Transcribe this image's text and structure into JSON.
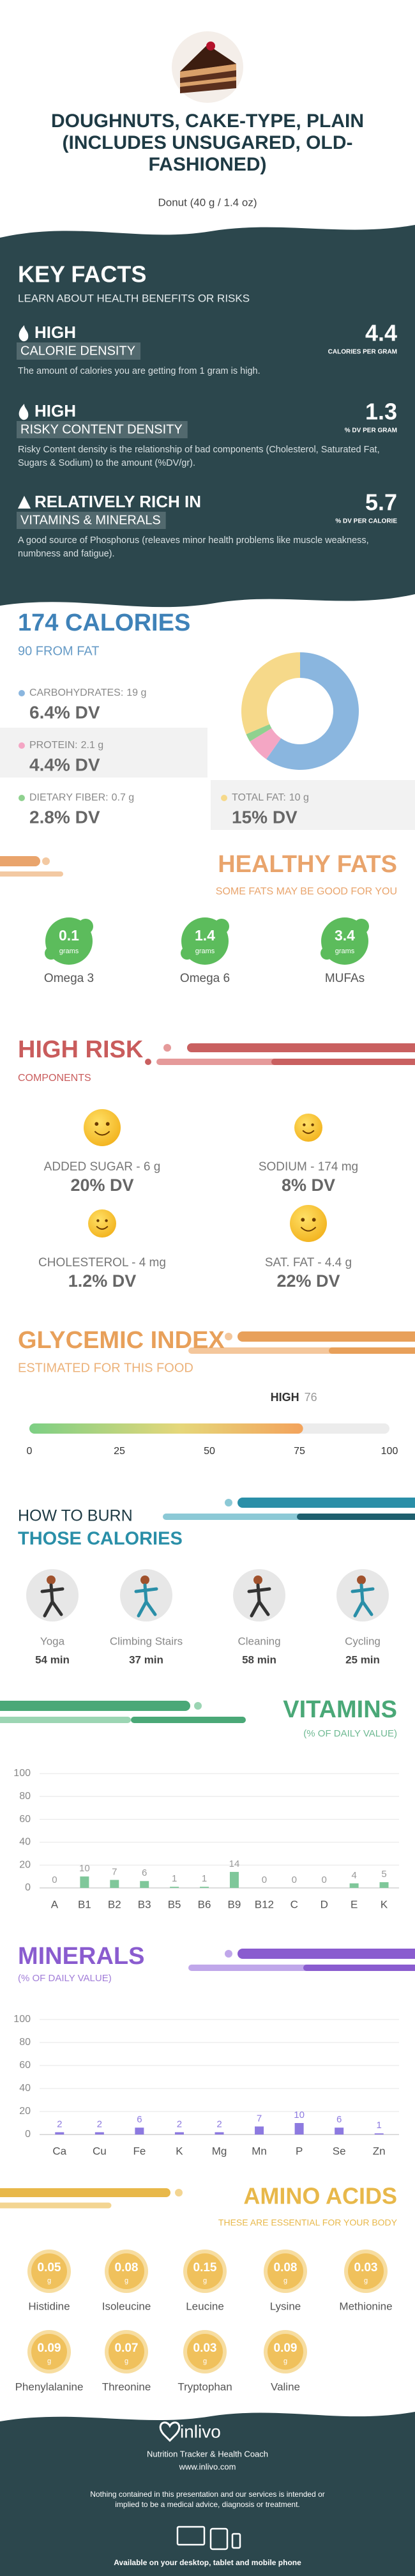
{
  "header": {
    "title": "DOUGHNUTS, CAKE-TYPE, PLAIN (INCLUDES UNSUGARED, OLD-FASHIONED)",
    "serving": "Donut (40 g / 1.4 oz)"
  },
  "key_facts": {
    "title": "KEY FACTS",
    "subtitle": "LEARN ABOUT HEALTH BENEFITS OR RISKS",
    "items": [
      {
        "level": "HIGH",
        "name": "CALORIE DENSITY",
        "value": 4.4,
        "unit": "CALORIES PER GRAM",
        "description": "The amount of calories you are getting from 1 gram is high."
      },
      {
        "level": "HIGH",
        "name": "RISKY CONTENT DENSITY",
        "value": 1.3,
        "unit": "% DV PER GRAM",
        "description": "Risky Content density is the relationship of bad components (Cholesterol, Saturated Fat, Sugars & Sodium) to the amount (%DV/gr)."
      },
      {
        "level": "RELATIVELY RICH  IN",
        "name": "VITAMINS & MINERALS",
        "value": 5.7,
        "unit": "% DV PER CALORIE",
        "description": "A good source of Phosphorus (releaves minor health problems like muscle weakness, numbness and fatigue)."
      }
    ]
  },
  "chart_data": [
    {
      "type": "pie",
      "title": "174 CALORIES",
      "subtitle": "90 FROM FAT",
      "categories": [
        "CARBOHYDRATES:",
        "PROTEIN:",
        "DIETARY FIBER:",
        "TOTAL FAT:"
      ],
      "values": [
        19,
        2.1,
        0.7,
        10
      ],
      "value_labels": [
        "19 g",
        "2.1 g",
        "0.7 g",
        "10 g"
      ],
      "dv_labels": [
        "6.4% DV",
        "4.4% DV",
        "2.8% DV",
        "15% DV"
      ],
      "colors": [
        "#8ab6df",
        "#f4a6c4",
        "#8fd18f",
        "#f6d98a"
      ]
    },
    {
      "type": "gauge",
      "title": "GLYCEMIC INDEX",
      "subtitle": "ESTIMATED FOR THIS FOOD",
      "label": "HIGH",
      "value": 76,
      "xlim": [
        0,
        100
      ],
      "xticks": [
        0,
        25,
        50,
        75,
        100
      ]
    },
    {
      "type": "bar",
      "title": "VITAMINS",
      "subtitle": "(% OF DAILY VALUE)",
      "categories": [
        "A",
        "B1",
        "B2",
        "B3",
        "B5",
        "B6",
        "B9",
        "B12",
        "C",
        "D",
        "E",
        "K"
      ],
      "values": [
        0,
        10,
        7,
        6,
        1,
        1,
        14,
        0,
        0,
        0,
        4,
        5
      ],
      "ylim": [
        0,
        100
      ],
      "yticks": [
        0,
        20,
        40,
        60,
        80,
        100
      ],
      "grid": true,
      "color": "#7fc79a"
    },
    {
      "type": "bar",
      "title": "MINERALS",
      "subtitle": "(% OF DAILY VALUE)",
      "categories": [
        "Ca",
        "Cu",
        "Fe",
        "K",
        "Mg",
        "Mn",
        "P",
        "Se",
        "Zn"
      ],
      "values": [
        2,
        2,
        6,
        2,
        2,
        7,
        10,
        6,
        1
      ],
      "ylim": [
        0,
        100
      ],
      "yticks": [
        0,
        20,
        40,
        60,
        80,
        100
      ],
      "grid": true,
      "color": "#8d7ae0"
    }
  ],
  "healthy_fats": {
    "title": "HEALTHY FATS",
    "subtitle": "SOME FATS MAY BE GOOD FOR YOU",
    "items": [
      {
        "value": 0.1,
        "unit": "grams",
        "name": "Omega 3"
      },
      {
        "value": 1.4,
        "unit": "grams",
        "name": "Omega 6"
      },
      {
        "value": 3.4,
        "unit": "grams",
        "name": "MUFAs"
      }
    ]
  },
  "high_risk": {
    "title": "HIGH RISK",
    "subtitle": "COMPONENTS",
    "items": [
      {
        "label": "ADDED SUGAR - 6 g",
        "dv": "20% DV"
      },
      {
        "label": "SODIUM - 174 mg",
        "dv": "8% DV"
      },
      {
        "label": "CHOLESTEROL - 4 mg",
        "dv": "1.2% DV"
      },
      {
        "label": "SAT. FAT - 4.4 g",
        "dv": "22% DV"
      }
    ]
  },
  "burn": {
    "title": "HOW TO BURN",
    "subtitle": "THOSE CALORIES",
    "activities": [
      {
        "name": "Yoga",
        "time": "54 min"
      },
      {
        "name": "Climbing Stairs",
        "time": "37 min"
      },
      {
        "name": "Cleaning",
        "time": "58 min"
      },
      {
        "name": "Cycling",
        "time": "25 min"
      }
    ]
  },
  "amino_acids": {
    "title": "AMINO ACIDS",
    "subtitle": "THESE ARE ESSENTIAL FOR YOUR BODY",
    "unit": "g",
    "items": [
      {
        "name": "Histidine",
        "value": 0.05
      },
      {
        "name": "Isoleucine",
        "value": 0.08
      },
      {
        "name": "Leucine",
        "value": 0.15
      },
      {
        "name": "Lysine",
        "value": 0.08
      },
      {
        "name": "Methionine",
        "value": 0.03
      },
      {
        "name": "Phenylalanine",
        "value": 0.09
      },
      {
        "name": "Threonine",
        "value": 0.07
      },
      {
        "name": "Tryptophan",
        "value": 0.03
      },
      {
        "name": "Valine",
        "value": 0.09
      }
    ]
  },
  "footer": {
    "brand": "inlivo",
    "tagline": "Nutrition Tracker & Health Coach",
    "url": "www.inlivo.com",
    "disclaimer": "Nothing contained in this presentation and our services is intended or implied to be a medical advice, diagnosis or treatment.",
    "availability": "Available on your desktop, tablet and mobile phone"
  }
}
